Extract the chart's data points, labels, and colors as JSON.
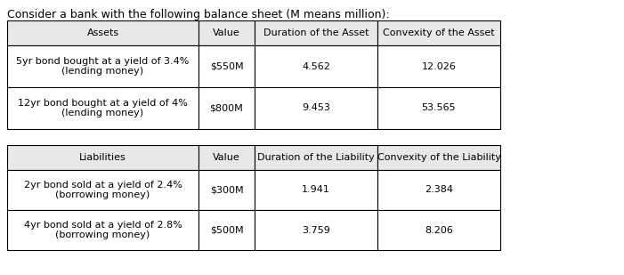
{
  "title": "Consider a bank with the following balance sheet (M means million):",
  "title_fontsize": 9.0,
  "assets_headers": [
    "Assets",
    "Value",
    "Duration of the Asset",
    "Convexity of the Asset"
  ],
  "assets_rows": [
    [
      "5yr bond bought at a yield of 3.4%\n(lending money)",
      "$550M",
      "4.562",
      "12.026"
    ],
    [
      "12yr bond bought at a yield of 4%\n(lending money)",
      "$800M",
      "9.453",
      "53.565"
    ]
  ],
  "liabilities_headers": [
    "Liabilities",
    "Value",
    "Duration of the Liability",
    "Convexity of the Liability"
  ],
  "liabilities_rows": [
    [
      "2yr bond sold at a yield of 2.4%\n(borrowing money)",
      "$300M",
      "1.941",
      "2.384"
    ],
    [
      "4yr bond sold at a yield of 2.8%\n(borrowing money)",
      "$500M",
      "3.759",
      "8.206"
    ]
  ],
  "background_color": "#ffffff",
  "header_bg": "#e8e8e8",
  "cell_bg": "#ffffff",
  "border_color": "#000000",
  "font_color": "#000000",
  "font_size": 8.0,
  "header_font_size": 8.0
}
